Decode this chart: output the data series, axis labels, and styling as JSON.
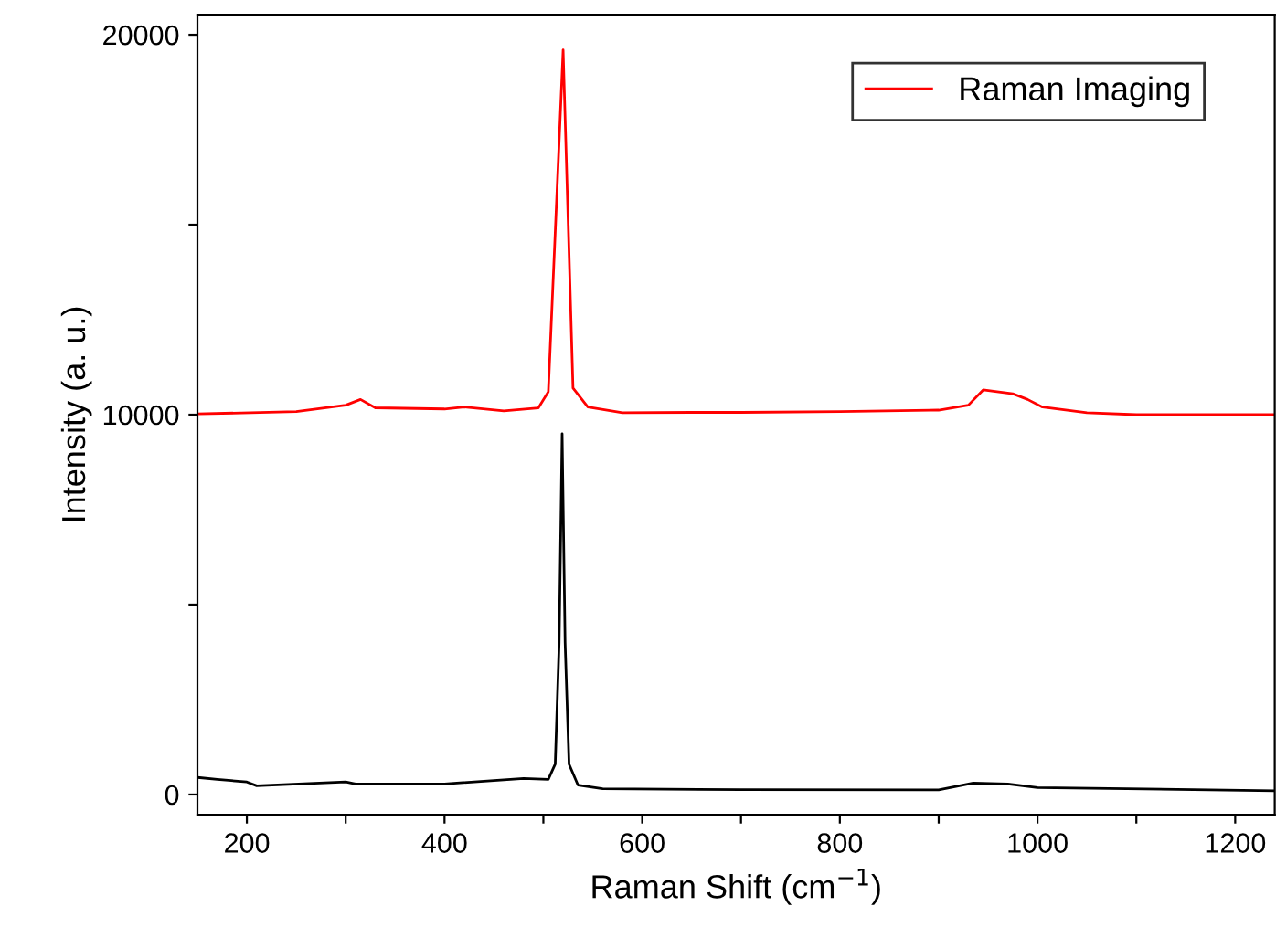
{
  "chart_data": {
    "type": "line",
    "xlabel": "Raman Shift (cm$^{−1}$)",
    "ylabel": "Intensity (a. u.)",
    "xlim": [
      150,
      1240
    ],
    "ylim": [
      -530,
      20530
    ],
    "xticks": [
      200,
      {
        "value": 300,
        "label": null
      },
      400,
      {
        "value": 500,
        "label": null
      },
      600,
      {
        "value": 700,
        "label": null
      },
      800,
      {
        "value": 900,
        "label": null
      },
      1000,
      {
        "value": 1100,
        "label": null
      },
      1200
    ],
    "yticks": [
      0,
      {
        "value": 5000,
        "label": null
      },
      10000,
      {
        "value": 15000,
        "label": null
      },
      20000
    ],
    "grid": false,
    "legend": "top right",
    "marker": "none",
    "line_style": "solid",
    "series": [
      {
        "name": "Raman Imaging",
        "color": "#ff0000",
        "x": [
          150,
          250,
          300,
          315,
          330,
          400,
          420,
          460,
          495,
          505,
          520,
          530,
          545,
          580,
          650,
          700,
          800,
          900,
          930,
          945,
          975,
          990,
          1005,
          1050,
          1100,
          1240
        ],
        "values": [
          10020,
          10080,
          10250,
          10400,
          10180,
          10150,
          10200,
          10100,
          10180,
          10600,
          19600,
          10700,
          10200,
          10050,
          10060,
          10060,
          10080,
          10120,
          10250,
          10650,
          10550,
          10400,
          10200,
          10050,
          10000,
          10000
        ]
      },
      {
        "color": "#000000",
        "x": [
          150,
          170,
          200,
          210,
          300,
          310,
          400,
          480,
          505,
          512,
          516,
          519,
          522,
          526,
          535,
          560,
          700,
          900,
          935,
          970,
          1000,
          1240
        ],
        "values": [
          450,
          400,
          330,
          230,
          330,
          280,
          280,
          420,
          400,
          800,
          4000,
          9500,
          4000,
          800,
          250,
          150,
          130,
          120,
          300,
          280,
          180,
          100
        ]
      }
    ]
  }
}
